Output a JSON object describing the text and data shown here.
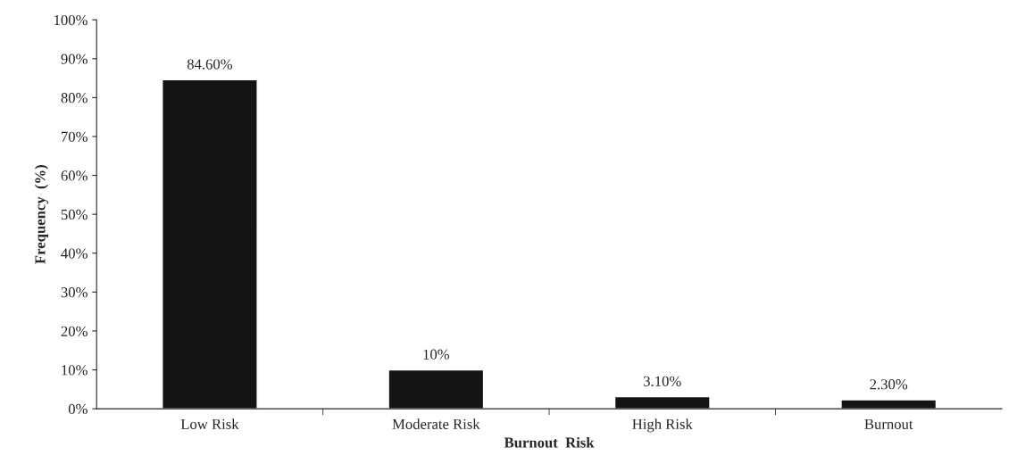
{
  "chart_data": {
    "type": "bar",
    "xlabel": "Burnout  Risk",
    "ylabel": "Frequency  (%)",
    "categories": [
      "Low Risk",
      "Moderate Risk",
      "High Risk",
      "Burnout"
    ],
    "values": [
      84.6,
      10,
      3.1,
      2.3
    ],
    "value_labels": [
      "84.60%",
      "10%",
      "3.10%",
      "2.30%"
    ],
    "color": "#141414",
    "ylim": [
      0,
      100
    ],
    "yticks": [
      {
        "value": 0,
        "label": "0%"
      },
      {
        "value": 10,
        "label": "10%"
      },
      {
        "value": 20,
        "label": "20%"
      },
      {
        "value": 30,
        "label": "30%"
      },
      {
        "value": 40,
        "label": "40%"
      },
      {
        "value": 50,
        "label": "50%"
      },
      {
        "value": 60,
        "label": "60%"
      },
      {
        "value": 70,
        "label": "70%"
      },
      {
        "value": 80,
        "label": "80%"
      },
      {
        "value": 90,
        "label": "90%"
      },
      {
        "value": 100,
        "label": "100%"
      }
    ],
    "grid": false,
    "legend": false
  }
}
